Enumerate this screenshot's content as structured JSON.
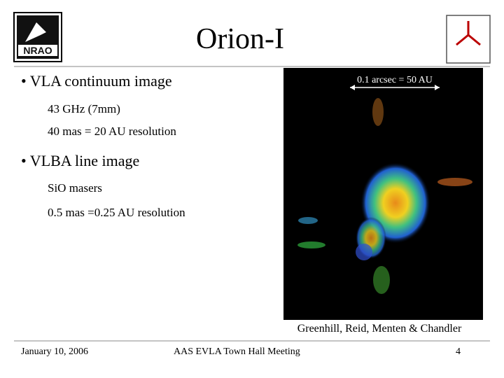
{
  "header": {
    "title": "Orion-I",
    "logo_left": "NRAO",
    "logo_right": "Expanded Very Large Array"
  },
  "bullets": [
    {
      "text": "• VLA continuum image",
      "items": [
        "43 GHz (7mm)",
        "40 mas = 20 AU resolution"
      ]
    },
    {
      "text": "• VLBA line image",
      "items": [
        "SiO masers",
        "0.5 mas =0.25 AU resolution"
      ]
    }
  ],
  "image": {
    "scale_label": "0.1 arcsec = 50 AU",
    "credit": "Greenhill, Reid, Menten & Chandler"
  },
  "footer": {
    "date": "January 10, 2006",
    "meeting": "AAS EVLA Town Hall Meeting",
    "page": "4"
  }
}
